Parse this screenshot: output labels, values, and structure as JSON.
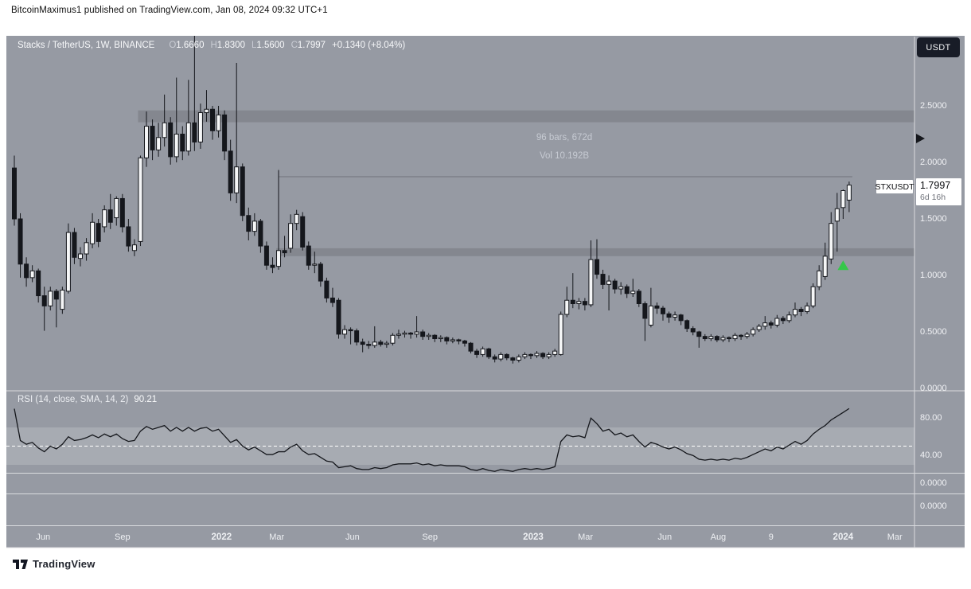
{
  "header": {
    "published_line": "BitcoinMaximus1 published on TradingView.com, Jan 08, 2024 09:32 UTC+1"
  },
  "legend": {
    "title": "Stacks / TetherUS, 1W, BINANCE",
    "ohlc": [
      {
        "k": "O",
        "v": "1.6660"
      },
      {
        "k": "H",
        "v": "1.8300"
      },
      {
        "k": "L",
        "v": "1.5600"
      },
      {
        "k": "C",
        "v": "1.7997"
      }
    ],
    "change": "+0.1340 (+8.04%)"
  },
  "toolbar": {
    "currency_button": "USDT"
  },
  "measure_label": {
    "line1": "96 bars, 672d",
    "line2": "Vol 10.192B"
  },
  "symbol_tag": "STXUSDT",
  "price_tag": {
    "price": "1.7997",
    "countdown": "6d 16h"
  },
  "rsi_legend": {
    "label": "RSI (14, close, SMA, 14, 2)",
    "value": "90.21"
  },
  "footer": {
    "logo_text": "TradingView"
  },
  "colors": {
    "chart_bg": "#969aa3",
    "zone_band": "#84878f",
    "rsi_band": "#a7abb2",
    "separator": "#d9dbde",
    "candle_black": "#15171c",
    "candle_white": "#f5f6f7",
    "axis_text": "#f0f1f4",
    "annotation_text": "#c7cbd3",
    "measure_line": "#70737b",
    "green_marker": "#35c74a",
    "label_bg": "#ffffff",
    "button_bg": "#181c27"
  },
  "chart_data": {
    "type": "candlestick+rsi",
    "symbol": "STXUSDT",
    "pair": "Stacks / TetherUS",
    "timeframe": "1W",
    "exchange": "BINANCE",
    "last_ohlc": {
      "open": 1.666,
      "high": 1.83,
      "low": 1.56,
      "close": 1.7997,
      "change": 0.134,
      "change_pct": 8.04
    },
    "price_axis_ticks": [
      "2.5000",
      "2.0000",
      "1.5000",
      "1.0000",
      "0.5000",
      "0.0000"
    ],
    "rsi_axis_ticks": [
      "80.00",
      "40.00"
    ],
    "mini_pane_ticks": [
      "0.0000",
      "0.0000"
    ],
    "ylim": [
      0.0,
      3.15
    ],
    "rsi_settings": {
      "length": 14,
      "source": "close",
      "ma_type": "SMA",
      "ma_length": 14,
      "upper_band": 70,
      "lower_band": 30,
      "middle": 50,
      "last_value": 90.21
    },
    "zones": [
      {
        "name": "resistance",
        "price_top": 2.46,
        "price_bottom": 2.355,
        "from_bar": 21
      },
      {
        "name": "support",
        "price_top": 1.24,
        "price_bottom": 1.17,
        "from_bar": 44
      }
    ],
    "measure_tool": {
      "bars": 96,
      "days": 672,
      "volume_text": "Vol 10.192B",
      "from_bar": 44,
      "to_bar": 139,
      "level_price": 1.873,
      "anchor_price_top": 1.94,
      "anchor_price_bottom": 1.07
    },
    "markers": [
      {
        "type": "arrow-up",
        "bar": 138,
        "price": 1.09
      }
    ],
    "time_ticks": [
      {
        "bar": 4.8,
        "label": "Jun"
      },
      {
        "bar": 18.0,
        "label": "Sep"
      },
      {
        "bar": 34.5,
        "label": "2022",
        "strong": true
      },
      {
        "bar": 43.7,
        "label": "Mar"
      },
      {
        "bar": 56.3,
        "label": "Jun"
      },
      {
        "bar": 69.2,
        "label": "Sep"
      },
      {
        "bar": 86.4,
        "label": "2023",
        "strong": true
      },
      {
        "bar": 95.1,
        "label": "Mar"
      },
      {
        "bar": 108.3,
        "label": "Jun"
      },
      {
        "bar": 117.2,
        "label": "Aug"
      },
      {
        "bar": 126.0,
        "label": "9"
      },
      {
        "bar": 138.0,
        "label": "2024",
        "strong": true
      },
      {
        "bar": 146.6,
        "label": "Mar"
      }
    ],
    "candles": [
      [
        1.95,
        2.06,
        1.44,
        1.5
      ],
      [
        1.5,
        1.55,
        0.98,
        1.1
      ],
      [
        1.1,
        1.16,
        0.9,
        0.98
      ],
      [
        0.98,
        1.09,
        0.94,
        1.04
      ],
      [
        1.04,
        1.06,
        0.76,
        0.82
      ],
      [
        0.82,
        0.9,
        0.51,
        0.73
      ],
      [
        0.73,
        0.9,
        0.69,
        0.86
      ],
      [
        0.86,
        0.88,
        0.54,
        0.79
      ],
      [
        0.7,
        0.9,
        0.66,
        0.87
      ],
      [
        0.86,
        1.46,
        0.84,
        1.38
      ],
      [
        1.38,
        1.42,
        1.1,
        1.16
      ],
      [
        1.15,
        1.25,
        1.08,
        1.19
      ],
      [
        1.19,
        1.33,
        1.13,
        1.29
      ],
      [
        1.28,
        1.55,
        1.24,
        1.47
      ],
      [
        1.46,
        1.5,
        1.25,
        1.3
      ],
      [
        1.43,
        1.62,
        1.38,
        1.58
      ],
      [
        1.58,
        1.72,
        1.41,
        1.47
      ],
      [
        1.51,
        1.7,
        1.44,
        1.68
      ],
      [
        1.68,
        1.72,
        1.38,
        1.43
      ],
      [
        1.43,
        1.5,
        1.21,
        1.26
      ],
      [
        1.22,
        1.32,
        1.17,
        1.27
      ],
      [
        1.3,
        2.06,
        1.26,
        2.04
      ],
      [
        2.04,
        2.45,
        1.96,
        2.32
      ],
      [
        2.32,
        2.38,
        2.02,
        2.11
      ],
      [
        2.11,
        2.35,
        2.05,
        2.22
      ],
      [
        2.22,
        2.6,
        2.14,
        2.35
      ],
      [
        2.35,
        2.4,
        1.98,
        2.05
      ],
      [
        2.05,
        2.75,
        2.0,
        2.25
      ],
      [
        2.25,
        2.32,
        2.02,
        2.1
      ],
      [
        2.1,
        2.73,
        2.06,
        2.35
      ],
      [
        2.35,
        3.12,
        2.1,
        2.18
      ],
      [
        2.18,
        2.52,
        2.12,
        2.44
      ],
      [
        2.44,
        2.64,
        2.36,
        2.47
      ],
      [
        2.47,
        2.5,
        2.2,
        2.28
      ],
      [
        2.28,
        2.5,
        2.22,
        2.42
      ],
      [
        2.42,
        2.46,
        2.02,
        2.1
      ],
      [
        2.1,
        2.2,
        1.66,
        1.73
      ],
      [
        1.73,
        2.88,
        1.64,
        1.96
      ],
      [
        1.96,
        1.99,
        1.48,
        1.53
      ],
      [
        1.53,
        1.6,
        1.31,
        1.39
      ],
      [
        1.39,
        1.55,
        1.35,
        1.48
      ],
      [
        1.48,
        1.5,
        1.2,
        1.26
      ],
      [
        1.26,
        1.3,
        1.05,
        1.09
      ],
      [
        1.09,
        1.16,
        1.02,
        1.07
      ],
      [
        1.08,
        1.93,
        1.05,
        1.22
      ],
      [
        1.22,
        1.35,
        1.16,
        1.2
      ],
      [
        1.24,
        1.54,
        1.2,
        1.46
      ],
      [
        1.46,
        1.58,
        1.4,
        1.54
      ],
      [
        1.52,
        1.56,
        1.22,
        1.25
      ],
      [
        1.26,
        1.3,
        1.05,
        1.09
      ],
      [
        1.09,
        1.21,
        1.02,
        1.1
      ],
      [
        1.1,
        1.12,
        0.9,
        0.95
      ],
      [
        0.95,
        0.98,
        0.76,
        0.8
      ],
      [
        0.8,
        0.89,
        0.72,
        0.76
      ],
      [
        0.78,
        0.8,
        0.44,
        0.48
      ],
      [
        0.48,
        0.56,
        0.44,
        0.52
      ],
      [
        0.52,
        0.54,
        0.39,
        0.51
      ],
      [
        0.51,
        0.53,
        0.38,
        0.41
      ],
      [
        0.41,
        0.44,
        0.32,
        0.39
      ],
      [
        0.39,
        0.42,
        0.35,
        0.38
      ],
      [
        0.38,
        0.55,
        0.36,
        0.41
      ],
      [
        0.41,
        0.43,
        0.37,
        0.39
      ],
      [
        0.39,
        0.42,
        0.36,
        0.4
      ],
      [
        0.4,
        0.49,
        0.38,
        0.47
      ],
      [
        0.47,
        0.52,
        0.44,
        0.48
      ],
      [
        0.48,
        0.51,
        0.45,
        0.49
      ],
      [
        0.49,
        0.5,
        0.44,
        0.48
      ],
      [
        0.48,
        0.64,
        0.45,
        0.5
      ],
      [
        0.5,
        0.52,
        0.43,
        0.46
      ],
      [
        0.46,
        0.49,
        0.43,
        0.47
      ],
      [
        0.47,
        0.48,
        0.41,
        0.44
      ],
      [
        0.44,
        0.47,
        0.41,
        0.45
      ],
      [
        0.45,
        0.46,
        0.39,
        0.42
      ],
      [
        0.42,
        0.45,
        0.4,
        0.43
      ],
      [
        0.43,
        0.44,
        0.39,
        0.42
      ],
      [
        0.42,
        0.43,
        0.37,
        0.4
      ],
      [
        0.4,
        0.41,
        0.31,
        0.33
      ],
      [
        0.33,
        0.35,
        0.27,
        0.3
      ],
      [
        0.3,
        0.37,
        0.28,
        0.35
      ],
      [
        0.35,
        0.36,
        0.26,
        0.28
      ],
      [
        0.28,
        0.3,
        0.23,
        0.26
      ],
      [
        0.26,
        0.32,
        0.24,
        0.3
      ],
      [
        0.3,
        0.31,
        0.25,
        0.27
      ],
      [
        0.27,
        0.28,
        0.22,
        0.25
      ],
      [
        0.25,
        0.3,
        0.23,
        0.28
      ],
      [
        0.28,
        0.32,
        0.26,
        0.3
      ],
      [
        0.3,
        0.31,
        0.26,
        0.29
      ],
      [
        0.29,
        0.33,
        0.27,
        0.31
      ],
      [
        0.31,
        0.32,
        0.26,
        0.28
      ],
      [
        0.28,
        0.32,
        0.26,
        0.3
      ],
      [
        0.3,
        0.35,
        0.28,
        0.33
      ],
      [
        0.3,
        0.68,
        0.29,
        0.655
      ],
      [
        0.655,
        0.9,
        0.63,
        0.78
      ],
      [
        0.78,
        1.02,
        0.71,
        0.75
      ],
      [
        0.75,
        0.8,
        0.7,
        0.77
      ],
      [
        0.77,
        0.8,
        0.69,
        0.74
      ],
      [
        0.74,
        1.31,
        0.72,
        1.14
      ],
      [
        1.14,
        1.32,
        0.97,
        1.01
      ],
      [
        1.01,
        1.05,
        0.88,
        0.92
      ],
      [
        0.92,
        1.0,
        0.69,
        0.95
      ],
      [
        0.95,
        0.97,
        0.84,
        0.88
      ],
      [
        0.88,
        0.94,
        0.83,
        0.9
      ],
      [
        0.9,
        0.92,
        0.8,
        0.84
      ],
      [
        0.84,
        0.97,
        0.81,
        0.86
      ],
      [
        0.86,
        0.88,
        0.72,
        0.75
      ],
      [
        0.75,
        0.77,
        0.42,
        0.62
      ],
      [
        0.56,
        0.89,
        0.54,
        0.73
      ],
      [
        0.73,
        0.76,
        0.66,
        0.71
      ],
      [
        0.71,
        0.73,
        0.6,
        0.66
      ],
      [
        0.66,
        0.68,
        0.58,
        0.63
      ],
      [
        0.63,
        0.68,
        0.6,
        0.65
      ],
      [
        0.65,
        0.66,
        0.56,
        0.6
      ],
      [
        0.6,
        0.61,
        0.5,
        0.53
      ],
      [
        0.53,
        0.55,
        0.47,
        0.5
      ],
      [
        0.5,
        0.51,
        0.36,
        0.46
      ],
      [
        0.46,
        0.48,
        0.42,
        0.44
      ],
      [
        0.44,
        0.48,
        0.42,
        0.46
      ],
      [
        0.46,
        0.47,
        0.41,
        0.43
      ],
      [
        0.43,
        0.47,
        0.41,
        0.45
      ],
      [
        0.45,
        0.46,
        0.41,
        0.44
      ],
      [
        0.44,
        0.49,
        0.42,
        0.47
      ],
      [
        0.47,
        0.48,
        0.43,
        0.46
      ],
      [
        0.46,
        0.5,
        0.44,
        0.48
      ],
      [
        0.48,
        0.54,
        0.46,
        0.52
      ],
      [
        0.52,
        0.57,
        0.5,
        0.55
      ],
      [
        0.55,
        0.64,
        0.52,
        0.58
      ],
      [
        0.58,
        0.6,
        0.53,
        0.56
      ],
      [
        0.56,
        0.65,
        0.54,
        0.62
      ],
      [
        0.62,
        0.64,
        0.57,
        0.6
      ],
      [
        0.6,
        0.68,
        0.58,
        0.65
      ],
      [
        0.65,
        0.76,
        0.63,
        0.7
      ],
      [
        0.7,
        0.72,
        0.64,
        0.68
      ],
      [
        0.68,
        0.76,
        0.66,
        0.73
      ],
      [
        0.73,
        0.93,
        0.71,
        0.9
      ],
      [
        0.9,
        1.09,
        0.87,
        1.04
      ],
      [
        0.99,
        1.29,
        0.96,
        1.17
      ],
      [
        1.145,
        1.56,
        1.1,
        1.46
      ],
      [
        1.48,
        1.73,
        1.21,
        1.59
      ],
      [
        1.6,
        1.76,
        1.5,
        1.75
      ],
      [
        1.666,
        1.83,
        1.56,
        1.7997
      ]
    ],
    "rsi_series": [
      90,
      56,
      52,
      54,
      48,
      44,
      50,
      47,
      52,
      60,
      56,
      57,
      59,
      62,
      59,
      63,
      60,
      63,
      58,
      55,
      56,
      66,
      71,
      68,
      70,
      72,
      66,
      70,
      66,
      70,
      66,
      69,
      70,
      66,
      68,
      61,
      54,
      57,
      50,
      46,
      49,
      45,
      41,
      41,
      44,
      44,
      49,
      52,
      45,
      41,
      42,
      38,
      34,
      33,
      27,
      28,
      29,
      26,
      25,
      25,
      27,
      26,
      27,
      30,
      31,
      31,
      31,
      32,
      30,
      31,
      29,
      30,
      29,
      29,
      29,
      28,
      25,
      24,
      26,
      24,
      23,
      25,
      24,
      23,
      25,
      26,
      25,
      26,
      25,
      26,
      28,
      55,
      62,
      60,
      61,
      59,
      80,
      74,
      66,
      68,
      62,
      64,
      60,
      62,
      55,
      49,
      54,
      52,
      49,
      47,
      49,
      46,
      42,
      40,
      36,
      35,
      36,
      35,
      36,
      35,
      37,
      36,
      38,
      41,
      44,
      47,
      45,
      49,
      47,
      51,
      55,
      52,
      56,
      63,
      68,
      72,
      78,
      82,
      86,
      90.21
    ]
  }
}
